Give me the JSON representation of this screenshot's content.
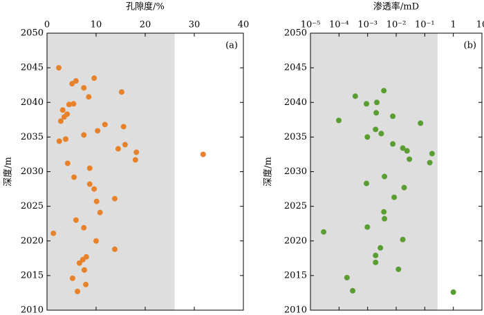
{
  "chart_data": [
    {
      "type": "scatter",
      "xlabel": "孔隙度/%",
      "ylabel": "深度/m",
      "annotation": "(a)",
      "color": "#e8822a",
      "shade_xlim": [
        0,
        26
      ],
      "shade_color": "#dedede",
      "xlim": [
        0,
        40
      ],
      "xticks": [
        0,
        10,
        20,
        30,
        40
      ],
      "xlog": false,
      "ylim": [
        2010,
        2050
      ],
      "yticks": [
        2010,
        2015,
        2020,
        2025,
        2030,
        2035,
        2040,
        2045,
        2050
      ],
      "x": [
        2.4,
        5.9,
        5.1,
        9.6,
        7.5,
        15.2,
        8.5,
        4.5,
        5.4,
        3.2,
        4.1,
        3.5,
        2.8,
        11.8,
        15.6,
        10.3,
        7.5,
        3.8,
        2.5,
        15.9,
        14.5,
        18.2,
        31.8,
        18.0,
        4.2,
        8.7,
        5.5,
        8.7,
        9.6,
        13.8,
        10.1,
        10.8,
        5.9,
        7.5,
        1.3,
        10.0,
        13.8,
        8.0,
        7.3,
        6.6,
        7.6,
        5.2,
        7.9,
        6.2
      ],
      "values": [
        2045.0,
        2043.1,
        2042.7,
        2043.5,
        2042.1,
        2041.5,
        2040.8,
        2039.7,
        2039.8,
        2038.9,
        2038.3,
        2037.9,
        2037.3,
        2036.8,
        2036.5,
        2035.9,
        2035.3,
        2034.7,
        2034.4,
        2033.9,
        2033.3,
        2032.8,
        2032.5,
        2031.7,
        2031.2,
        2030.5,
        2029.2,
        2028.2,
        2027.5,
        2026.1,
        2025.7,
        2024.1,
        2023.0,
        2021.9,
        2021.1,
        2020.0,
        2018.8,
        2017.7,
        2017.3,
        2016.8,
        2015.8,
        2014.6,
        2013.7,
        2012.7
      ]
    },
    {
      "type": "scatter",
      "xlabel": "渗透率/mD",
      "ylabel": "深度/m",
      "annotation": "(b)",
      "color": "#5a9e33",
      "shade_xlim": [
        1e-05,
        0.28
      ],
      "shade_color": "#dedede",
      "xlim": [
        1e-05,
        10
      ],
      "xlog": true,
      "xticks": [
        {
          "value": 1e-05,
          "label": "10⁻⁵"
        },
        {
          "value": 0.0001,
          "label": "10⁻⁴"
        },
        {
          "value": 0.001,
          "label": "10⁻³"
        },
        {
          "value": 0.01,
          "label": "10⁻²"
        },
        {
          "value": 0.1,
          "label": "10⁻¹"
        },
        1,
        10
      ],
      "ylim": [
        2010,
        2050
      ],
      "yticks": [
        2010,
        2015,
        2020,
        2025,
        2030,
        2035,
        2040,
        2045,
        2050
      ],
      "x": [
        0.0037,
        0.00037,
        0.0021,
        0.00091,
        0.002,
        0.0076,
        9.8e-05,
        0.071,
        0.0019,
        0.003,
        0.00098,
        0.0076,
        0.017,
        0.024,
        0.18,
        0.029,
        0.15,
        0.0039,
        0.019,
        0.00091,
        0.0085,
        0.0037,
        0.0039,
        0.00098,
        2.9e-05,
        0.017,
        0.0028,
        0.0019,
        0.0019,
        0.012,
        0.00019,
        0.0003,
        1.0
      ],
      "values": [
        2041.7,
        2040.9,
        2040.0,
        2039.8,
        2038.5,
        2038.0,
        2037.4,
        2037.0,
        2036.1,
        2035.5,
        2035.0,
        2034.0,
        2033.4,
        2033.0,
        2032.6,
        2031.8,
        2031.3,
        2029.3,
        2027.7,
        2028.3,
        2026.3,
        2024.2,
        2023.2,
        2022.0,
        2021.3,
        2020.2,
        2019.0,
        2017.9,
        2016.9,
        2015.9,
        2014.7,
        2012.8,
        2012.6
      ]
    }
  ]
}
